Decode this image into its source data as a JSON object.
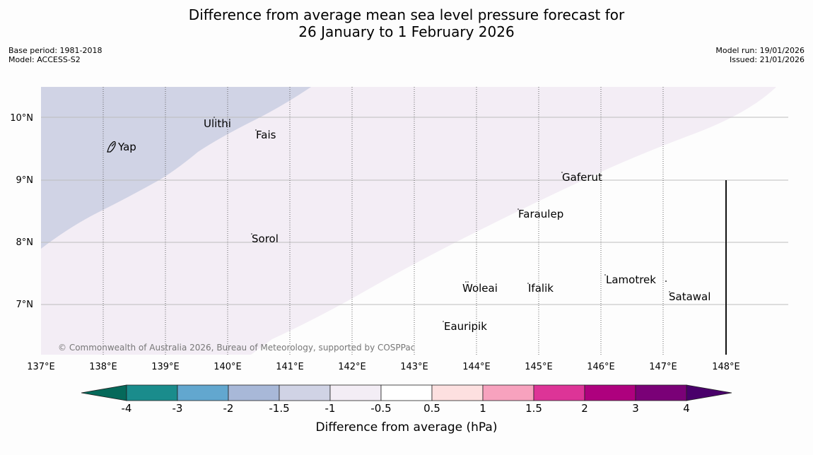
{
  "title": {
    "line1": "Difference from average mean sea level pressure forecast for",
    "line2": "26 January to 1 February 2026"
  },
  "meta": {
    "base_period": "Base period: 1981-2018",
    "model": "Model: ACCESS-S2",
    "model_run": "Model run: 19/01/2026",
    "issued": "Issued: 21/01/2026"
  },
  "map": {
    "lat_labels": [
      "10°N",
      "9°N",
      "8°N",
      "7°N"
    ],
    "lon_labels": [
      "137°E",
      "138°E",
      "139°E",
      "140°E",
      "141°E",
      "142°E",
      "143°E",
      "144°E",
      "145°E",
      "146°E",
      "147°E",
      "148°E"
    ],
    "places": [
      "Yap",
      "Ulithi",
      "Fais",
      "Gaferut",
      "Faraulep",
      "Sorol",
      "Woleai",
      "Ifalik",
      "Lamotrek",
      "Satawal",
      "Eauripik"
    ],
    "copyright": "© Commonwealth of Australia 2026, Bureau of Meteorology, supported by COSPPac",
    "fill_colors": {
      "minus_1_5_to_minus_1": "#d0d3e5",
      "minus_1_to_minus_0_5": "#f3edf5"
    }
  },
  "colorbar": {
    "labels": [
      "-4",
      "-3",
      "-2",
      "-1.5",
      "-1",
      "-0.5",
      "0.5",
      "1",
      "1.5",
      "2",
      "3",
      "4"
    ],
    "colors": [
      "#1a8c8c",
      "#62a7cf",
      "#a8b8d8",
      "#d0d3e5",
      "#f3edf5",
      "#ffffff",
      "#fde0e0",
      "#f7a2be",
      "#dd3497",
      "#ae017e",
      "#7a0177"
    ],
    "low_extend_color": "#05695a",
    "high_extend_color": "#49006a",
    "title": "Difference from average (hPa)"
  }
}
